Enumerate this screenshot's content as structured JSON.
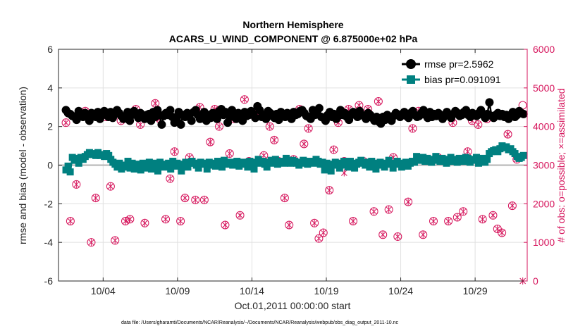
{
  "chart_data": {
    "type": "line",
    "title_line1": "Northern Hemisphere",
    "title_line2": "ACARS_U_WIND_COMPONENT @ 6.875000e+02 hPa",
    "xlabel": "Oct.01,2011 00:00:00 start",
    "ylabel_left": "rmse and bias (model - observation)",
    "ylabel_right": "# of obs: o=possible; ×=assimilated",
    "footer": "data file: /Users/gharamti/Documents/NCAR/Reanalysis/~/Documents/NCAR/Reanalysis/webpub/obs_diag_output_2011-10.nc",
    "xlim": [
      0.5,
      32
    ],
    "ylim_left": [
      -6,
      6
    ],
    "ylim_right": [
      0,
      6000
    ],
    "x_ticks": [
      3.5,
      8.5,
      13.5,
      18.5,
      23.5,
      28.5
    ],
    "x_tick_labels": [
      "10/04",
      "10/09",
      "10/14",
      "10/19",
      "10/24",
      "10/29"
    ],
    "y_left_ticks": [
      -6,
      -4,
      -2,
      0,
      2,
      4,
      6
    ],
    "y_left_tick_labels": [
      "-6",
      "-4",
      "-2",
      "0",
      "2",
      "4",
      "6"
    ],
    "y_right_ticks": [
      0,
      1000,
      2000,
      3000,
      4000,
      5000,
      6000
    ],
    "y_right_tick_labels": [
      "0",
      "1000",
      "2000",
      "3000",
      "4000",
      "5000",
      "6000"
    ],
    "legend_position": "top-right",
    "colors": {
      "rmse": "#000000",
      "bias": "#008080",
      "obs": "#d6155c",
      "zero_line": "#b3b3b3",
      "grid": "#e0e0e0"
    },
    "series": [
      {
        "name": "rmse",
        "legend_label": "rmse pr=2.5962",
        "values": [
          2.85,
          2.7,
          2.65,
          2.55,
          2.5,
          2.35,
          2.8,
          2.6,
          2.5,
          2.7,
          2.55,
          2.3,
          2.7,
          2.6,
          2.5,
          2.75,
          2.4,
          2.6,
          2.8,
          2.6,
          2.5,
          2.75,
          2.45,
          2.65,
          2.85,
          2.7,
          2.55,
          2.4,
          2.5,
          2.75,
          2.3,
          2.6,
          2.8,
          2.65,
          2.45,
          2.7,
          2.55,
          2.4,
          2.6,
          2.65,
          2.3,
          2.75,
          2.5,
          2.85,
          2.6,
          2.1,
          2.55,
          2.7,
          2.6,
          2.85,
          2.5,
          2.2,
          2.45,
          2.75,
          2.1,
          2.6,
          2.5,
          2.7,
          2.55,
          2.3,
          2.75,
          2.85,
          2.6,
          2.4,
          2.5,
          2.75,
          2.3,
          2.6,
          2.45,
          2.7,
          2.55,
          2.4,
          2.8,
          2.9,
          2.6,
          2.75,
          2.2,
          2.5,
          2.85,
          2.6,
          2.4,
          2.7,
          2.5,
          2.3,
          2.75,
          2.55,
          2.6,
          2.8,
          2.65,
          2.45,
          3.05,
          2.85,
          2.5,
          2.6,
          2.4,
          2.8,
          2.7,
          2.55,
          2.45,
          2.65,
          2.35,
          2.75,
          2.6,
          2.5,
          2.7,
          2.55,
          2.4,
          2.75,
          2.6,
          2.65,
          2.8,
          2.85,
          2.7,
          2.55,
          2.5,
          2.4,
          2.85,
          2.6,
          2.75,
          2.95,
          2.5,
          2.45,
          2.3,
          2.6,
          2.75,
          2.5,
          2.65,
          2.4,
          2.55,
          2.85,
          2.6,
          2.7,
          2.5,
          2.35,
          2.65,
          2.75,
          2.6,
          2.5,
          2.8,
          2.6,
          2.55,
          2.4,
          2.7,
          2.6,
          2.45,
          2.3,
          2.5,
          2.25,
          2.15,
          2.5,
          2.35,
          2.6,
          2.45,
          2.3,
          2.55,
          2.7,
          2.6,
          2.5,
          2.65,
          2.75,
          2.55,
          2.45,
          2.7,
          2.8,
          2.6,
          2.5,
          2.55,
          2.7,
          2.85,
          2.6,
          2.45,
          2.75,
          2.5,
          2.65,
          2.55,
          2.7,
          2.6,
          2.4,
          2.55,
          2.75,
          2.6,
          2.45,
          2.65,
          2.8,
          2.7,
          2.55,
          2.6,
          2.75,
          2.85,
          2.6,
          2.5,
          2.7,
          2.6,
          2.55,
          2.7,
          2.85,
          2.6,
          2.45,
          2.65,
          3.25,
          2.55,
          2.45,
          2.6,
          2.7,
          2.55,
          2.65,
          2.5,
          2.6,
          2.4,
          2.6,
          2.75,
          2.5,
          2.6,
          2.8,
          2.7,
          2.65
        ]
      },
      {
        "name": "bias",
        "legend_label": "bias pr=0.091091",
        "values": [
          -0.25,
          -0.05,
          -0.35,
          0.4,
          0.25,
          0.35,
          0.1,
          0.4,
          0.3,
          0.45,
          0.55,
          0.65,
          0.55,
          0.6,
          0.5,
          0.65,
          0.5,
          0.55,
          0.45,
          0.6,
          0.5,
          0.3,
          0.15,
          0.05,
          -0.1,
          0.1,
          -0.2,
          0.0,
          -0.1,
          0.2,
          -0.15,
          0.1,
          -0.2,
          0.05,
          -0.1,
          -0.25,
          0.1,
          -0.15,
          0.0,
          0.15,
          -0.2,
          0.1,
          -0.1,
          -0.3,
          0.15,
          0.0,
          -0.1,
          0.05,
          0.1,
          -0.2,
          0.2,
          -0.05,
          0.1,
          0.0,
          -0.3,
          0.05,
          0.15,
          -0.1,
          0.1,
          0.2,
          0.1,
          0.0,
          -0.15,
          0.15,
          0.05,
          0.1,
          -0.2,
          0.15,
          0.0,
          0.1,
          -0.05,
          0.2,
          0.1,
          -0.1,
          0.25,
          0.1,
          0.05,
          0.15,
          0.0,
          0.1,
          0.2,
          -0.05,
          0.1,
          0.15,
          0.05,
          -0.1,
          0.2,
          0.1,
          -0.2,
          0.15,
          0.3,
          0.1,
          0.2,
          0.05,
          -0.1,
          0.15,
          0.25,
          0.1,
          0.3,
          0.05,
          0.15,
          0.2,
          0.1,
          0.35,
          0.15,
          0.1,
          0.25,
          0.2,
          0.1,
          0.0,
          0.15,
          0.25,
          0.1,
          0.05,
          0.2,
          0.15,
          0.1,
          0.3,
          0.2,
          0.05,
          0.15,
          -0.25,
          0.1,
          0.0,
          -0.3,
          0.05,
          0.15,
          0.0,
          -0.15,
          0.1,
          0.2,
          0.0,
          -0.1,
          0.2,
          0.1,
          -0.15,
          0.05,
          0.15,
          0.25,
          0.1,
          0.0,
          0.15,
          -0.1,
          0.2,
          0.05,
          -0.2,
          0.1,
          0.15,
          0.0,
          -0.1,
          0.1,
          0.25,
          0.05,
          -0.15,
          0.1,
          0.2,
          0.05,
          -0.1,
          0.1,
          0.15,
          -0.05,
          0.1,
          0.2,
          0.15,
          0.45,
          0.3,
          0.25,
          0.4,
          0.2,
          0.35,
          0.3,
          0.15,
          0.25,
          0.45,
          0.3,
          0.2,
          0.35,
          0.3,
          0.1,
          0.25,
          0.4,
          0.2,
          0.3,
          0.15,
          0.35,
          0.25,
          0.2,
          0.4,
          0.35,
          0.15,
          0.3,
          0.25,
          0.4,
          0.1,
          0.2,
          0.35,
          0.15,
          0.3,
          0.6,
          0.7,
          0.75,
          0.8,
          0.7,
          0.85,
          1.0,
          0.9,
          0.95,
          0.8,
          0.85,
          0.7,
          0.6,
          0.45,
          0.35,
          0.4,
          0.5
        ]
      }
    ],
    "obs_possible": {
      "name": "possible",
      "x": [
        1.0,
        1.3,
        1.7,
        2.3,
        2.7,
        3.0,
        3.3,
        3.7,
        4.0,
        4.3,
        4.7,
        5.0,
        5.3,
        5.7,
        6.0,
        6.3,
        6.7,
        7.0,
        7.3,
        7.7,
        8.0,
        8.3,
        8.7,
        9.0,
        9.3,
        9.7,
        10.0,
        10.3,
        10.7,
        11.0,
        11.3,
        11.7,
        12.0,
        12.3,
        12.7,
        13.0,
        13.3,
        13.7,
        14.0,
        14.3,
        14.7,
        15.0,
        15.3,
        15.7,
        16.0,
        16.3,
        16.7,
        17.0,
        17.3,
        17.7,
        18.0,
        18.3,
        18.7,
        19.0,
        19.3,
        19.7,
        20.0,
        20.3,
        20.7,
        21.0,
        21.3,
        21.7,
        22.0,
        22.3,
        22.7,
        23.0,
        23.3,
        23.7,
        24.0,
        24.3,
        24.7,
        25.0,
        25.3,
        25.7,
        26.0,
        26.3,
        26.7,
        27.0,
        27.3,
        27.7,
        28.0,
        28.3,
        28.7,
        29.0,
        29.3,
        29.7,
        30.0,
        30.3,
        30.7,
        31.0,
        31.3,
        31.7
      ],
      "values": [
        4100,
        1550,
        2500,
        4400,
        1000,
        2150,
        4300,
        4250,
        2450,
        1050,
        4150,
        1550,
        1600,
        4450,
        4050,
        1500,
        3050,
        4600,
        4200,
        1600,
        2650,
        3350,
        1550,
        2150,
        3200,
        2100,
        4500,
        2100,
        3600,
        4450,
        4000,
        1450,
        3300,
        4200,
        1700,
        4700,
        3100,
        4250,
        4400,
        3250,
        4000,
        3650,
        3100,
        2150,
        1450,
        3150,
        4450,
        3550,
        3950,
        1500,
        1100,
        1250,
        2350,
        3400,
        4100,
        3100,
        4450,
        1550,
        4550,
        3100,
        4450,
        1800,
        4650,
        1200,
        1850,
        3200,
        1150,
        4300,
        2050,
        3950,
        4400,
        1200,
        4250,
        1550,
        3200,
        4250,
        1550,
        4100,
        1650,
        1800,
        3350,
        4150,
        4050,
        1600,
        4200,
        1700,
        1350,
        1250,
        3800,
        1950,
        3150,
        4550
      ]
    },
    "obs_assimilated": {
      "name": "assimilated",
      "x": [
        1.0,
        1.3,
        1.7,
        2.3,
        2.7,
        3.0,
        3.3,
        3.7,
        4.0,
        4.3,
        4.7,
        5.0,
        5.3,
        5.7,
        6.0,
        6.3,
        6.7,
        7.0,
        7.3,
        7.7,
        8.0,
        8.3,
        8.7,
        9.0,
        9.3,
        9.7,
        10.0,
        10.3,
        10.7,
        11.0,
        11.3,
        11.7,
        12.0,
        12.3,
        12.7,
        13.0,
        13.3,
        13.7,
        14.0,
        14.3,
        14.7,
        15.0,
        15.3,
        15.7,
        16.0,
        16.3,
        16.7,
        17.0,
        17.3,
        17.7,
        18.0,
        18.3,
        18.7,
        19.0,
        19.3,
        19.7,
        20.0,
        20.3,
        20.7,
        21.0,
        21.3,
        21.7,
        22.0,
        22.3,
        22.7,
        23.0,
        23.3,
        23.7,
        24.0,
        24.3,
        24.7,
        25.0,
        25.3,
        25.7,
        26.0,
        26.3,
        26.7,
        27.0,
        27.3,
        27.7,
        28.0,
        28.3,
        28.7,
        29.0,
        29.3,
        29.7,
        30.0,
        30.3,
        30.7,
        31.0,
        31.3,
        31.7
      ],
      "values": [
        4100,
        1550,
        2500,
        4400,
        1000,
        2150,
        4300,
        4250,
        2450,
        1050,
        4150,
        1550,
        1600,
        4450,
        4050,
        1500,
        3050,
        4600,
        4200,
        1600,
        2650,
        3350,
        1550,
        2150,
        3200,
        2100,
        4500,
        2100,
        3600,
        4450,
        4000,
        1450,
        3300,
        4200,
        1700,
        4700,
        3100,
        4250,
        4400,
        3250,
        4000,
        3650,
        3100,
        2150,
        1450,
        3150,
        4450,
        3550,
        3950,
        1500,
        1100,
        1250,
        2350,
        3400,
        4100,
        2800,
        4450,
        1550,
        4550,
        3100,
        4450,
        1800,
        4650,
        1200,
        1850,
        3200,
        1150,
        4300,
        2050,
        3950,
        4400,
        1200,
        4250,
        1550,
        3200,
        4250,
        1550,
        4100,
        1650,
        1800,
        3350,
        4150,
        4050,
        1600,
        4200,
        1700,
        1350,
        1250,
        3800,
        1950,
        3150,
        0
      ]
    }
  }
}
